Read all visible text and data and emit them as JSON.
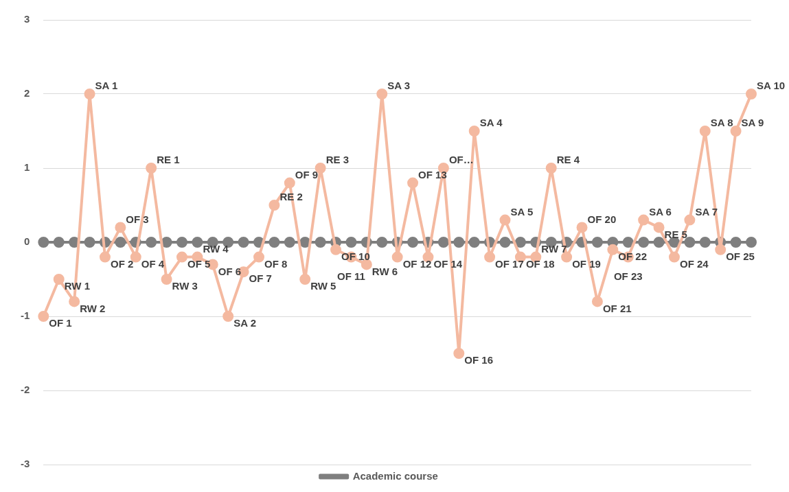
{
  "chart_data": {
    "type": "line",
    "categories": [
      null,
      null,
      null,
      null,
      null,
      null,
      null,
      null,
      null,
      null,
      null,
      null,
      null,
      null,
      null,
      null,
      null,
      null,
      null,
      null,
      null,
      null,
      null,
      null,
      null,
      null,
      null,
      null,
      null,
      null,
      null,
      null,
      null,
      null,
      null,
      null,
      null,
      null,
      null,
      null,
      null,
      null,
      null,
      null,
      null,
      null,
      null
    ],
    "series": [
      {
        "name": "Academic course",
        "color": "#7f7f7f",
        "values": [
          0,
          0,
          0,
          0,
          0,
          0,
          0,
          0,
          0,
          0,
          0,
          0,
          0,
          0,
          0,
          0,
          0,
          0,
          0,
          0,
          0,
          0,
          0,
          0,
          0,
          0,
          0,
          0,
          0,
          0,
          0,
          0,
          0,
          0,
          0,
          0,
          0,
          0,
          0,
          0,
          0,
          0,
          0,
          0,
          0,
          0,
          0
        ]
      },
      {
        "color": "#f4b9a0",
        "values": [
          -1,
          -0.5,
          -0.8,
          2,
          -0.2,
          0.2,
          -0.2,
          1,
          -0.5,
          -0.2,
          -0.2,
          -0.3,
          -1,
          -0.4,
          -0.2,
          0.5,
          0.8,
          -0.5,
          1,
          -0.1,
          -0.2,
          -0.3,
          2,
          -0.2,
          0.8,
          -0.2,
          1,
          -1.5,
          1.5,
          -0.2,
          0.3,
          -0.2,
          -0.2,
          1,
          -0.2,
          0.2,
          -0.8,
          -0.1,
          -0.2,
          0.3,
          0.2,
          -0.2,
          0.3,
          1.5,
          -0.1,
          1.5,
          2
        ],
        "value_labels": [
          "OF 1",
          "RW 1",
          "RW 2",
          "SA 1",
          "OF 2",
          "OF 3",
          "OF 4",
          "RE 1",
          "RW 3",
          "OF 5",
          "RW 4",
          "OF 6",
          "SA 2",
          "OF 7",
          "OF 8",
          "RE 2",
          "OF 9",
          "RW 5",
          "RE 3",
          "OF 10",
          "OF 11",
          "RW 6",
          "SA 3",
          "OF 12",
          "OF 13",
          "OF 14",
          "OF…",
          "OF 16",
          "SA 4",
          "OF 17",
          "SA 5",
          "OF 18",
          "RW 7",
          "RE 4",
          "OF 19",
          "OF 20",
          "OF 21",
          "OF 22",
          "OF 23",
          "SA 6",
          "RE 5",
          "OF 24",
          "SA 7",
          "SA 8",
          "OF 25",
          "SA 9",
          "SA 10"
        ]
      }
    ],
    "ylim": [
      -3,
      3
    ],
    "yticks": [
      -3,
      -2,
      -1,
      0,
      1,
      2,
      3
    ],
    "grid": "y",
    "legend": "bottom",
    "marker": "circle",
    "line_style": "solid",
    "tick_labels": "y"
  }
}
